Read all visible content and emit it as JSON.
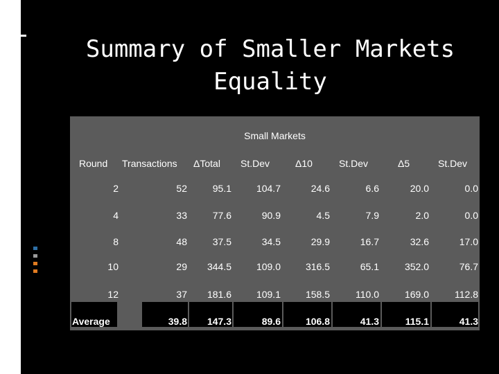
{
  "title": {
    "line1": "Summary of Smaller Markets",
    "line2": "Equality"
  },
  "table": {
    "caption": "Small Markets",
    "headers": [
      "Round",
      "Transactions",
      "ΔTotal",
      "St.Dev",
      "Δ10",
      "St.Dev",
      "Δ5",
      "St.Dev"
    ],
    "rows": [
      [
        "2",
        "52",
        "95.1",
        "104.7",
        "24.6",
        "6.6",
        "20.0",
        "0.0"
      ],
      [
        "4",
        "33",
        "77.6",
        "90.9",
        "4.5",
        "7.9",
        "2.0",
        "0.0"
      ],
      [
        "8",
        "48",
        "37.5",
        "34.5",
        "29.9",
        "16.7",
        "32.6",
        "17.0"
      ],
      [
        "10",
        "29",
        "344.5",
        "109.0",
        "316.5",
        "65.1",
        "352.0",
        "76.7"
      ],
      [
        "12",
        "37",
        "181.6",
        "109.1",
        "158.5",
        "110.0",
        "169.0",
        "112.8"
      ]
    ],
    "average": [
      "Average",
      "39.8",
      "147.3",
      "89.6",
      "106.8",
      "41.3",
      "115.1",
      "41.3"
    ]
  },
  "colors": {
    "background": "#000000",
    "table_fill": "#5b5b5b",
    "accent_blue": "#2e6fa6",
    "accent_orange": "#e07b20",
    "accent_gray": "#9a9a9a"
  }
}
